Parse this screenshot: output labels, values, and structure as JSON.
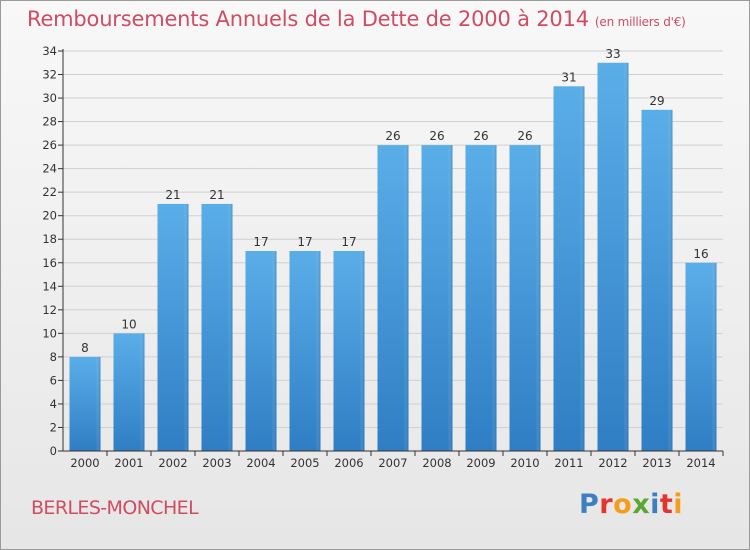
{
  "chart_data": {
    "type": "bar",
    "title": "Remboursements Annuels de la Dette de 2000 à 2014",
    "unit_label": "(en milliers d'€)",
    "categories": [
      "2000",
      "2001",
      "2002",
      "2003",
      "2004",
      "2005",
      "2006",
      "2007",
      "2008",
      "2009",
      "2010",
      "2011",
      "2012",
      "2013",
      "2014"
    ],
    "values": [
      8,
      10,
      21,
      21,
      17,
      17,
      17,
      26,
      26,
      26,
      26,
      31,
      33,
      29,
      16
    ],
    "ylim": [
      0,
      34
    ],
    "yticks": [
      0,
      2,
      4,
      6,
      8,
      10,
      12,
      14,
      16,
      18,
      20,
      22,
      24,
      26,
      28,
      30,
      32,
      34
    ],
    "grid": true,
    "bar_color_top": "#5aaee8",
    "bar_color_bottom": "#2f7ec4"
  },
  "footer": {
    "commune": "BERLES-MONCHEL",
    "logo_letters": [
      "P",
      "r",
      "o",
      "x",
      "i",
      "t",
      "i"
    ],
    "logo_colors": [
      "#3d7fc1",
      "#e3342f",
      "#f59c1a",
      "#5aa832",
      "#3d7fc1",
      "#e3342f",
      "#f59c1a"
    ]
  },
  "colors": {
    "title": "#cf4c63",
    "axis": "#333333",
    "grid": "#d0d0d0"
  }
}
